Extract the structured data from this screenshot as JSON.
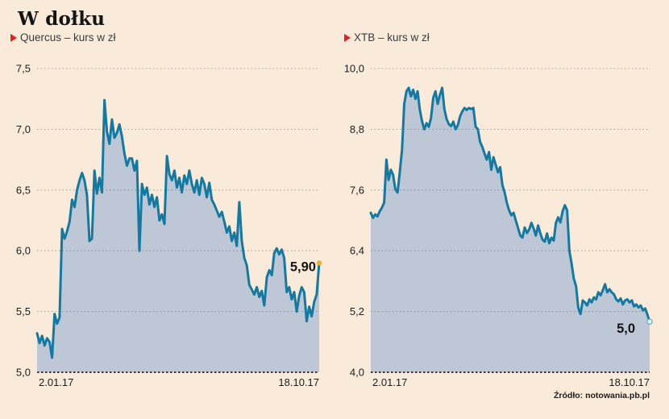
{
  "title": "W dołku",
  "source": "Źródło: notowania.pb.pl",
  "colors": {
    "background": "#faeada",
    "line": "#1479a1",
    "area_fill": "#bdc7d5",
    "legend_marker": "#e02025",
    "gridline": "#6e6e6e",
    "baseline": "#3a3a3a",
    "text": "#1c1c1c",
    "end_marker_left": "#f0ac38",
    "end_marker_right_fill": "#ecf5f8",
    "end_marker_right_stroke": "#5da9c6"
  },
  "chart_data": [
    {
      "type": "area",
      "series_name": "Quercus",
      "legend": "Quercus – kurs w zł",
      "unit": "kurs w zł",
      "ylim": [
        5.0,
        7.5
      ],
      "y_tick_labels": [
        "7,5",
        "7,0",
        "6,5",
        "6,0",
        "5,5",
        "5,0"
      ],
      "x_tick_labels": [
        "2.01.17",
        "18.10.17"
      ],
      "end_label": "5,90",
      "end_value": 5.9,
      "grid": "dotted-horizontal",
      "values": [
        5.32,
        5.24,
        5.3,
        5.22,
        5.28,
        5.25,
        5.12,
        5.48,
        5.4,
        5.45,
        6.18,
        6.1,
        6.16,
        6.24,
        6.42,
        6.36,
        6.5,
        6.58,
        6.64,
        6.58,
        6.46,
        6.08,
        6.1,
        6.66,
        6.47,
        6.6,
        6.48,
        7.24,
        6.98,
        6.88,
        7.08,
        6.93,
        6.97,
        7.04,
        6.94,
        6.8,
        6.7,
        6.76,
        6.76,
        6.66,
        6.74,
        6.0,
        6.55,
        6.46,
        6.52,
        6.38,
        6.46,
        6.36,
        6.44,
        6.25,
        6.3,
        6.22,
        6.78,
        6.63,
        6.58,
        6.66,
        6.52,
        6.6,
        6.48,
        6.62,
        6.55,
        6.66,
        6.55,
        6.48,
        6.58,
        6.46,
        6.6,
        6.55,
        6.44,
        6.56,
        6.42,
        6.38,
        6.33,
        6.28,
        6.32,
        6.24,
        6.15,
        6.2,
        6.08,
        6.15,
        6.04,
        6.4,
        6.08,
        5.94,
        5.88,
        5.72,
        5.68,
        5.64,
        5.7,
        5.62,
        5.67,
        5.55,
        5.78,
        5.84,
        5.8,
        5.98,
        6.02,
        5.97,
        6.01,
        5.94,
        5.66,
        5.7,
        5.6,
        5.66,
        5.5,
        5.63,
        5.7,
        5.66,
        5.42,
        5.54,
        5.46,
        5.58,
        5.64,
        5.9
      ]
    },
    {
      "type": "area",
      "series_name": "XTB",
      "legend": "XTB – kurs w zł",
      "unit": "kurs w zł",
      "ylim": [
        4.0,
        10.0
      ],
      "y_tick_labels": [
        "10,0",
        "8,8",
        "7,6",
        "6,4",
        "5,2",
        "4,0"
      ],
      "x_tick_labels": [
        "2.01.17",
        "18.10.17"
      ],
      "end_label": "5,0",
      "end_value": 5.0,
      "grid": "dotted-horizontal",
      "values": [
        7.15,
        7.05,
        7.12,
        7.08,
        7.18,
        7.25,
        7.35,
        8.2,
        7.8,
        8.0,
        7.9,
        7.62,
        7.55,
        7.95,
        8.4,
        9.3,
        9.55,
        9.62,
        9.45,
        9.58,
        9.4,
        9.55,
        9.18,
        8.95,
        8.8,
        8.92,
        8.85,
        9.02,
        9.42,
        9.55,
        9.3,
        9.48,
        9.62,
        9.2,
        9.0,
        8.9,
        8.86,
        8.95,
        8.8,
        8.88,
        9.05,
        9.15,
        9.22,
        9.18,
        9.22,
        9.2,
        9.22,
        8.85,
        8.8,
        8.55,
        8.45,
        8.32,
        8.2,
        8.35,
        8.0,
        8.25,
        8.1,
        7.95,
        8.05,
        7.7,
        7.55,
        7.35,
        7.2,
        7.1,
        7.15,
        7.0,
        6.85,
        6.7,
        6.66,
        6.86,
        6.75,
        6.82,
        6.95,
        6.84,
        6.7,
        6.9,
        6.74,
        6.62,
        6.58,
        6.74,
        6.55,
        6.66,
        6.6,
        6.95,
        7.06,
        6.96,
        7.18,
        7.3,
        7.2,
        6.4,
        6.15,
        5.85,
        5.7,
        5.28,
        5.15,
        5.42,
        5.38,
        5.32,
        5.44,
        5.38,
        5.48,
        5.44,
        5.58,
        5.52,
        5.62,
        5.74,
        5.58,
        5.64,
        5.58,
        5.54,
        5.44,
        5.4,
        5.46,
        5.34,
        5.42,
        5.44,
        5.38,
        5.42,
        5.3,
        5.34,
        5.28,
        5.32,
        5.22,
        5.26,
        5.14,
        5.0
      ]
    }
  ]
}
